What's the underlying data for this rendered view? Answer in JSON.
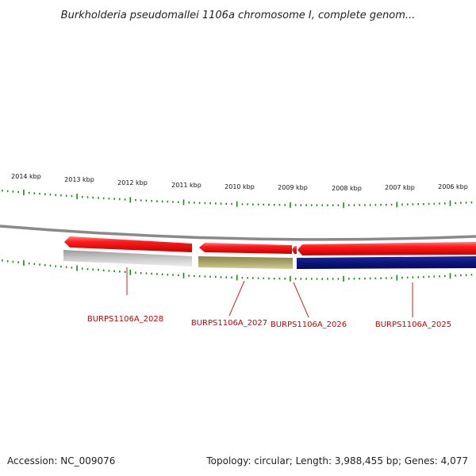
{
  "title": "Burkholderia pseudomallei 1106a chromosome I, complete genom...",
  "ruler": {
    "labels": [
      "2014 kbp",
      "2013 kbp",
      "2012 kbp",
      "2011 kbp",
      "2010 kbp",
      "2009 kbp",
      "2008 kbp",
      "2007 kbp",
      "2006 kbp"
    ]
  },
  "genes": [
    {
      "name": "BURPS1106A_2028",
      "strand": "reverse",
      "arrow_color": "#ee1111",
      "protein_color": "#bdbdbd"
    },
    {
      "name": "BURPS1106A_2027",
      "strand": "reverse",
      "arrow_color": "#ee1111",
      "protein_color": "#aaa36a"
    },
    {
      "name": "BURPS1106A_2026",
      "strand": "reverse",
      "arrow_color": "#ee1111",
      "protein_color": ""
    },
    {
      "name": "BURPS1106A_2025",
      "strand": "reverse",
      "arrow_color": "#ee1111",
      "protein_color": "#0a1580"
    }
  ],
  "colors": {
    "backbone": "#8a8a8a",
    "tick": "#1a8a1a",
    "gene_label": "#cc0000",
    "leader_line": "#cc2222"
  },
  "footer": {
    "accession": "Accession: NC_009076",
    "topology": "Topology: circular; Length: 3,988,455 bp; Genes: 4,077"
  }
}
